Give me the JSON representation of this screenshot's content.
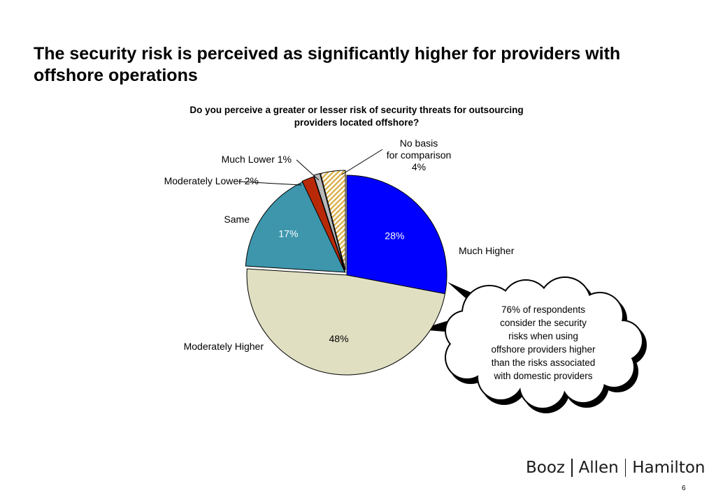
{
  "slide": {
    "title": "The security risk is perceived as significantly higher for providers with offshore operations",
    "page_number": "6"
  },
  "brand": {
    "parts": [
      "Booz",
      "Allen",
      "Hamilton"
    ]
  },
  "chart_data": {
    "type": "pie",
    "title": "Do you perceive a greater or lesser risk of security threats for outsourcing providers located offshore?",
    "slices": [
      {
        "category": "Much Higher",
        "value": 28,
        "inside_label": "28%",
        "outside_label": "Much Higher",
        "color": "#0000ff"
      },
      {
        "category": "Moderately Higher",
        "value": 48,
        "inside_label": "48%",
        "outside_label": "Moderately Higher",
        "color": "#e0dfc2"
      },
      {
        "category": "Same",
        "value": 17,
        "inside_label": "17%",
        "outside_label": "Same",
        "color": "#3d96ac"
      },
      {
        "category": "Moderately Lower",
        "value": 2,
        "inside_label": "",
        "outside_label": "Moderately Lower   2%",
        "color": "#b82a07"
      },
      {
        "category": "Much Lower",
        "value": 1,
        "inside_label": "",
        "outside_label": "Much Lower   1%",
        "color": "#b8b8b8"
      },
      {
        "category": "No basis for comparison",
        "value": 4,
        "inside_label": "",
        "outside_label": [
          "No basis",
          "for comparison",
          "4%"
        ],
        "color": "#d9b04a",
        "pattern": "hatched"
      }
    ],
    "callout": {
      "text": [
        "76% of respondents",
        "consider the security",
        "risks when using",
        "offshore providers higher",
        "than the risks associated",
        "with  domestic providers"
      ]
    }
  }
}
